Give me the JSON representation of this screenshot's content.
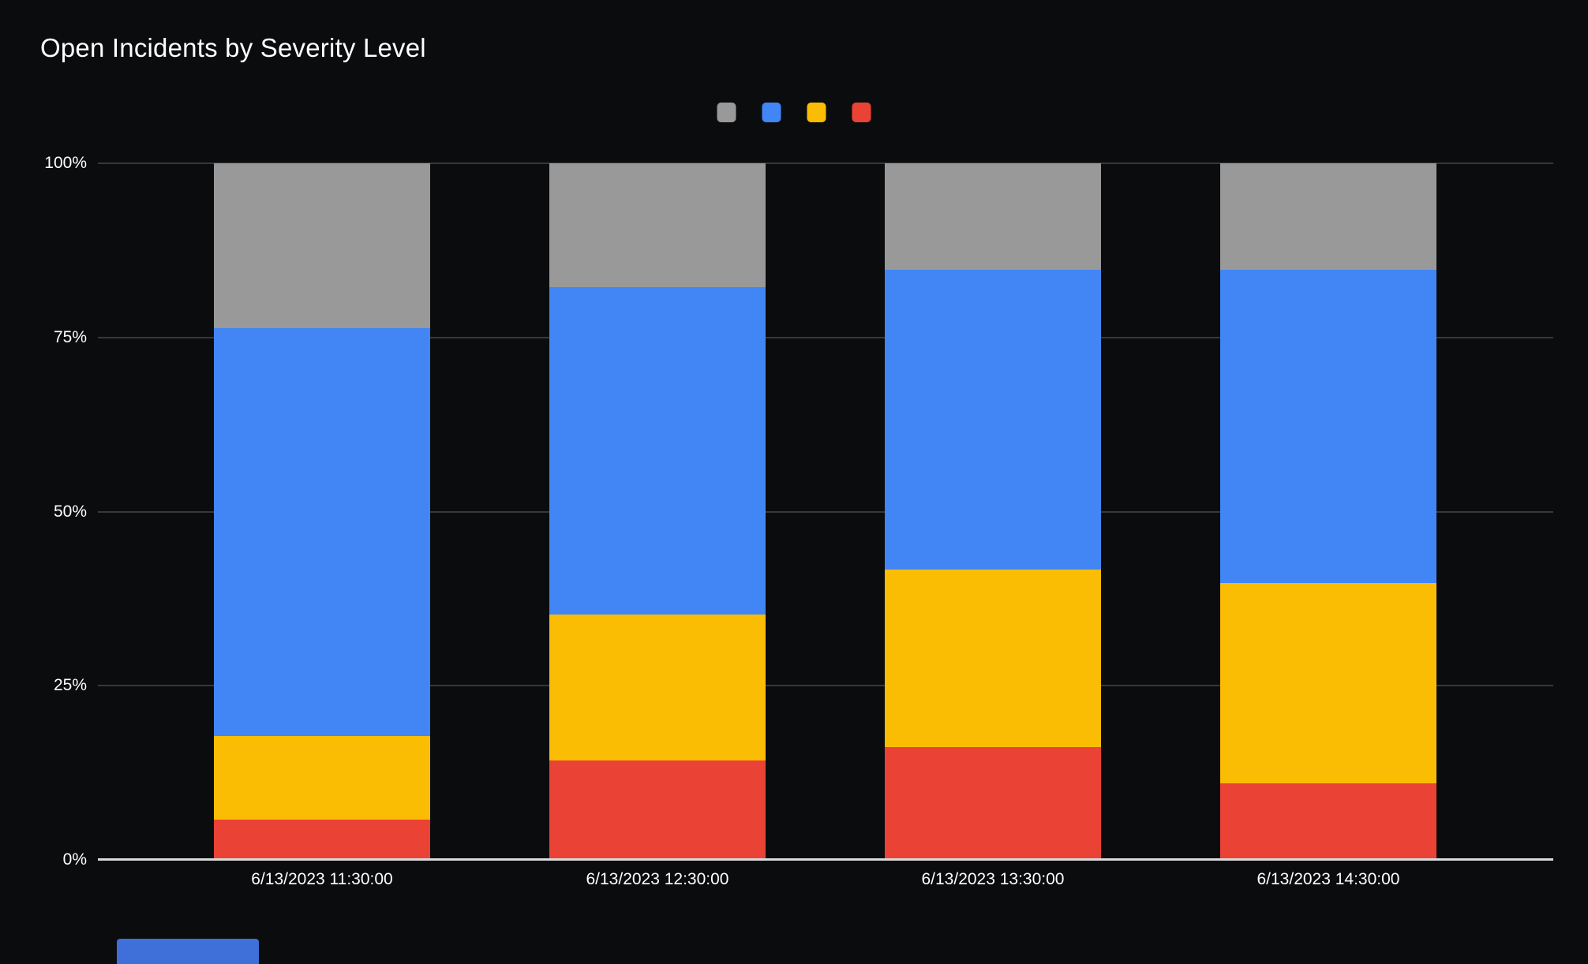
{
  "panel": {
    "background": "#0b0c0e",
    "text_color": "#ffffff"
  },
  "title": "Open Incidents by Severity Level",
  "legend": {
    "position": "top-center",
    "labels_visible": false,
    "swatches": [
      {
        "name": "gray-severity-swatch",
        "color": "#999999"
      },
      {
        "name": "blue-severity-swatch",
        "color": "#4285f4"
      },
      {
        "name": "yellow-severity-swatch",
        "color": "#fbbc04"
      },
      {
        "name": "red-severity-swatch",
        "color": "#ea4335"
      }
    ]
  },
  "chart_data": {
    "type": "bar",
    "stacked": true,
    "normalized": "percent",
    "title": "Open Incidents by Severity Level",
    "xlabel": "",
    "ylabel": "",
    "ylim": [
      0,
      100
    ],
    "grid": true,
    "y_ticks": [
      "0%",
      "25%",
      "50%",
      "75%",
      "100%"
    ],
    "categories": [
      "6/13/2023 11:30:00",
      "6/13/2023 12:30:00",
      "6/13/2023 13:30:00",
      "6/13/2023 14:30:00"
    ],
    "series": [
      {
        "name": "red",
        "color": "#ea4335",
        "values": [
          5.8,
          14.3,
          16.2,
          11.0
        ]
      },
      {
        "name": "yellow",
        "color": "#fbbc04",
        "values": [
          12.0,
          20.9,
          25.5,
          28.8
        ]
      },
      {
        "name": "blue",
        "color": "#4285f4",
        "values": [
          58.5,
          47.0,
          43.0,
          44.9
        ]
      },
      {
        "name": "gray",
        "color": "#999999",
        "values": [
          23.7,
          17.8,
          15.3,
          15.3
        ]
      }
    ]
  },
  "decor": {
    "bottom_left_bar_color": "#3f6fd8",
    "gridline_color": "#37383a",
    "axis_line_color": "#d9dadc"
  }
}
